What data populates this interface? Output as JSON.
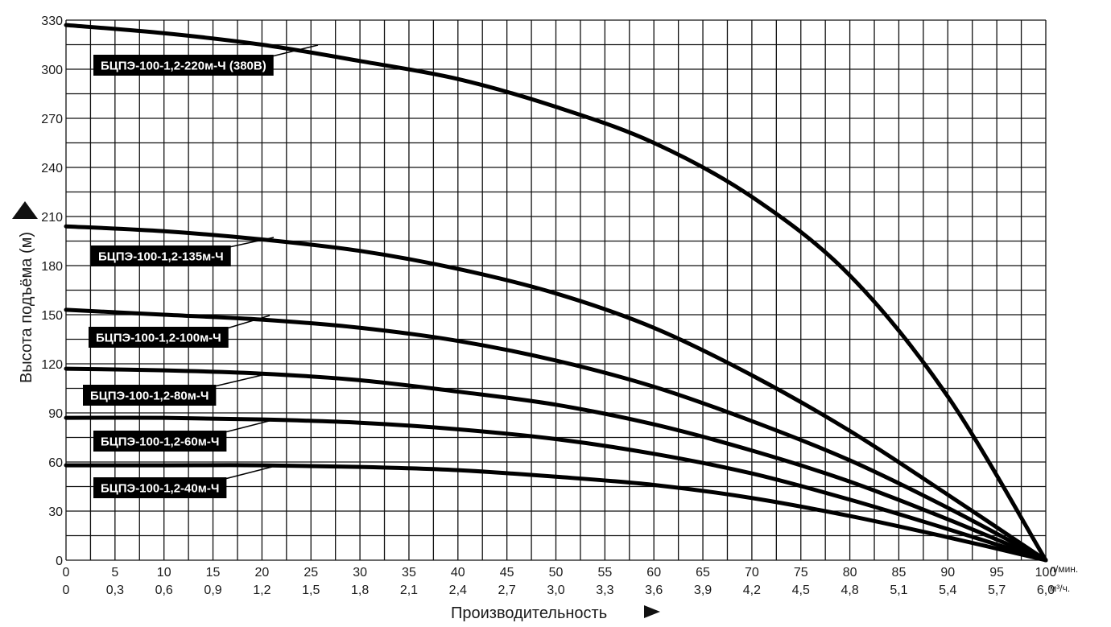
{
  "chart_data": {
    "type": "line",
    "title": "",
    "xlabel": "Производительность",
    "ylabel": "Высота подъёма (м)",
    "x_unit_primary": "л/мин.",
    "x_unit_secondary": "м³/ч.",
    "xlim": [
      0,
      100
    ],
    "ylim": [
      0,
      330
    ],
    "x_ticks": [
      "0",
      "5",
      "10",
      "15",
      "20",
      "25",
      "30",
      "35",
      "40",
      "45",
      "50",
      "55",
      "60",
      "65",
      "70",
      "75",
      "80",
      "85",
      "90",
      "95",
      "100"
    ],
    "x_ticks_secondary": [
      "0",
      "0,3",
      "0,6",
      "0,9",
      "1,2",
      "1,5",
      "1,8",
      "2,1",
      "2,4",
      "2,7",
      "3,0",
      "3,3",
      "3,6",
      "3,9",
      "4,2",
      "4,5",
      "4,8",
      "5,1",
      "5,4",
      "5,7",
      "6,0"
    ],
    "y_ticks": [
      "0",
      "30",
      "60",
      "90",
      "120",
      "150",
      "180",
      "210",
      "240",
      "270",
      "300",
      "330"
    ],
    "grid": true,
    "x": [
      0,
      10,
      20,
      30,
      40,
      50,
      60,
      70,
      80,
      90,
      100
    ],
    "series": [
      {
        "name": "БЦПЭ-100-1,2-220м-Ч (380В)",
        "values": [
          327,
          322,
          315,
          305,
          294,
          277,
          255,
          222,
          174,
          100,
          0
        ]
      },
      {
        "name": "БЦПЭ-100-1,2-135м-Ч",
        "values": [
          204,
          201,
          196,
          189,
          178,
          163,
          142,
          113,
          79,
          40,
          0
        ]
      },
      {
        "name": "БЦПЭ-100-1,2-100м-Ч",
        "values": [
          153,
          150,
          147,
          142,
          134,
          122,
          106,
          85,
          61,
          32,
          0
        ]
      },
      {
        "name": "БЦПЭ-100-1,2-80м-Ч",
        "values": [
          117,
          116,
          114,
          110,
          103,
          95,
          83,
          67,
          48,
          25,
          0
        ]
      },
      {
        "name": "БЦПЭ-100-1,2-60м-Ч",
        "values": [
          87,
          87,
          86,
          84,
          80,
          74,
          65,
          53,
          37,
          19,
          0
        ]
      },
      {
        "name": "БЦПЭ-100-1,2-40м-Ч",
        "values": [
          58,
          58,
          58,
          57,
          55,
          51,
          46,
          38,
          27,
          14,
          0
        ]
      }
    ]
  }
}
